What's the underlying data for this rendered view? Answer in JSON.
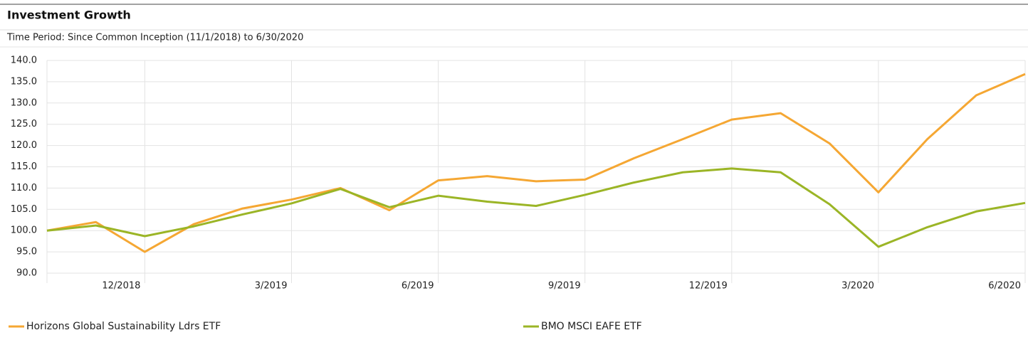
{
  "chart_data": {
    "type": "line",
    "title": "Investment Growth",
    "subtitle": "Time Period: Since Common Inception (11/1/2018) to 6/30/2020",
    "categories": [
      null,
      null,
      "12/2018",
      null,
      null,
      "3/2019",
      null,
      null,
      "6/2019",
      null,
      null,
      "9/2019",
      null,
      null,
      "12/2019",
      null,
      null,
      "3/2020",
      null,
      null,
      "6/2020"
    ],
    "series": [
      {
        "name": "Horizons Global Sustainability Ldrs ETF",
        "color": "#f5a733",
        "values": [
          100,
          102,
          95,
          101.5,
          105.2,
          107.3,
          110,
          104.8,
          111.8,
          112.8,
          111.6,
          112,
          117,
          121.5,
          126.1,
          127.6,
          120.5,
          109,
          121.5,
          131.8,
          136.8
        ]
      },
      {
        "name": "BMO MSCI EAFE ETF",
        "color": "#9bb526",
        "values": [
          100,
          101.2,
          98.7,
          101,
          103.8,
          106.4,
          109.8,
          105.5,
          108.2,
          106.8,
          105.8,
          108.4,
          111.3,
          113.7,
          114.6,
          113.7,
          106.2,
          96.2,
          100.8,
          104.5,
          106.5
        ]
      }
    ],
    "ylim": [
      90,
      140
    ],
    "yticks": [
      {
        "value": 90,
        "label": "90.0"
      },
      {
        "value": 95,
        "label": "95.0"
      },
      {
        "value": 100,
        "label": "100.0"
      },
      {
        "value": 105,
        "label": "105.0"
      },
      {
        "value": 110,
        "label": "110.0"
      },
      {
        "value": 115,
        "label": "115.0"
      },
      {
        "value": 120,
        "label": "120.0"
      },
      {
        "value": 125,
        "label": "125.0"
      },
      {
        "value": 130,
        "label": "130.0"
      },
      {
        "value": 135,
        "label": "135.0"
      },
      {
        "value": 140,
        "label": "140.0"
      }
    ],
    "grid": true
  }
}
